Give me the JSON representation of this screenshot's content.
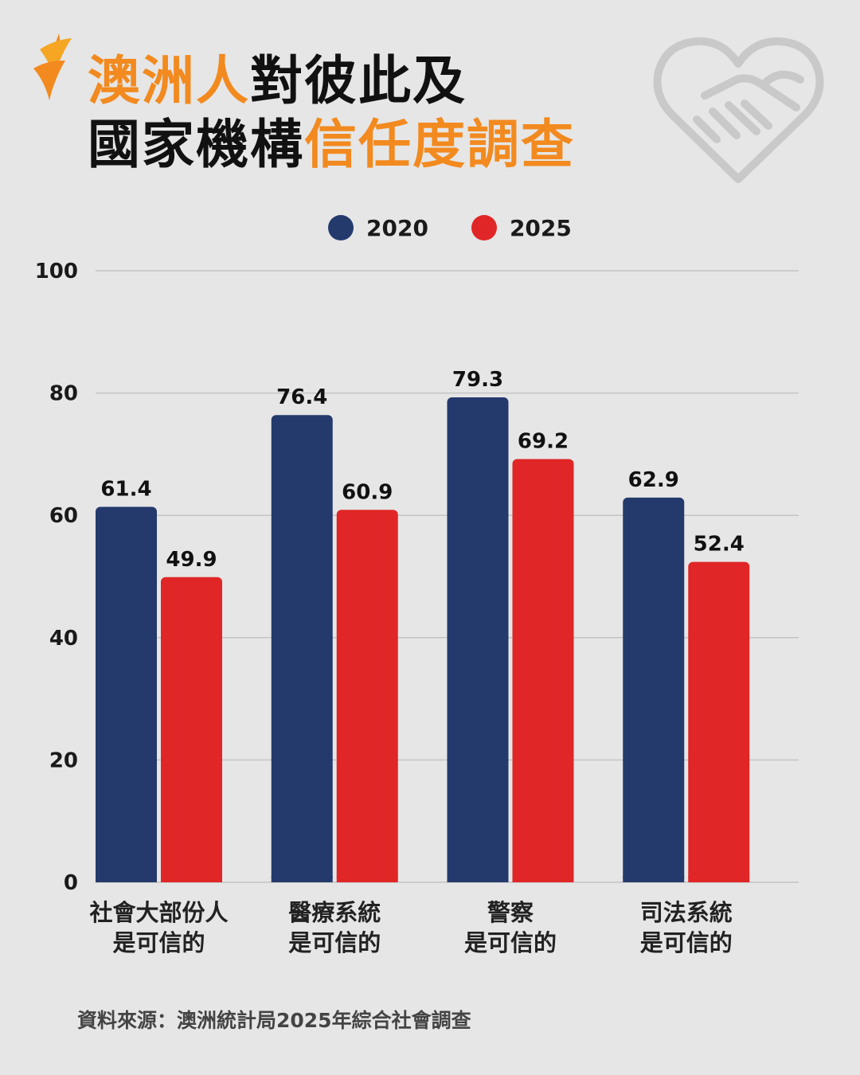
{
  "header": {
    "title_line1_highlight": "澳洲人",
    "title_line1_rest": "對彼此及",
    "title_line2_rest": "國家機構",
    "title_line2_highlight": "信任度調查",
    "accent_color": "#f28a1f",
    "logo_icon": "sbs-flame-logo",
    "decor_icon": "handshake-heart-icon"
  },
  "chart_data": {
    "type": "bar",
    "categories": [
      [
        "社會大部份人",
        "是可信的"
      ],
      [
        "醫療系統",
        "是可信的"
      ],
      [
        "警察",
        "是可信的"
      ],
      [
        "司法系統",
        "是可信的"
      ]
    ],
    "series": [
      {
        "name": "2020",
        "color": "#243a6d",
        "values": [
          61.4,
          76.4,
          79.3,
          62.9
        ]
      },
      {
        "name": "2025",
        "color": "#e02626",
        "values": [
          49.9,
          60.9,
          69.2,
          52.4
        ]
      }
    ],
    "ylim": [
      0,
      100
    ],
    "yticks": [
      0,
      20,
      40,
      60,
      80,
      100
    ],
    "grid": true,
    "legend_position": "top-center"
  },
  "footer": {
    "source": "資料來源：澳洲統計局2025年綜合社會調查"
  }
}
